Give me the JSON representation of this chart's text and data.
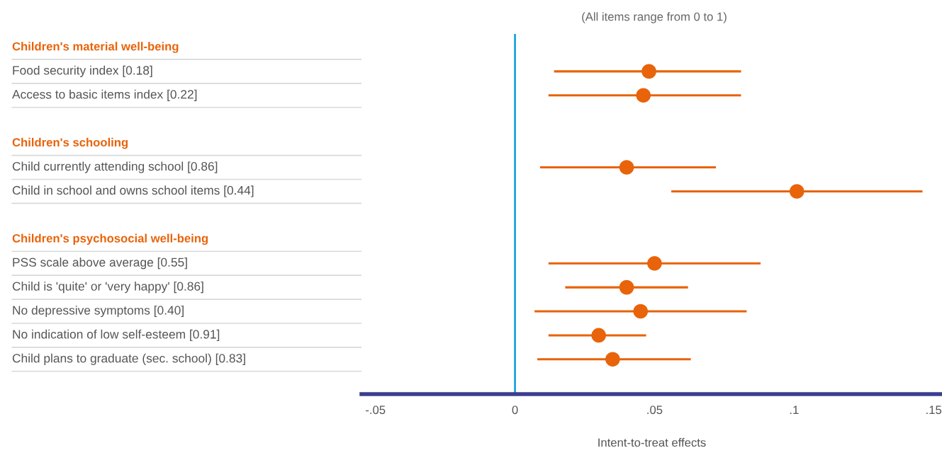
{
  "chart_data": {
    "type": "scatter",
    "orientation": "horizontal",
    "categories": [
      "Children's material well-being",
      "Food security index [0.18]",
      "Access to basic items index [0.22]",
      null,
      "Children's schooling",
      "Child currently attending school [0.86]",
      "Child in school and owns school items [0.44]",
      null,
      "Children's psychosocial well-being",
      "PSS scale above average [0.55]",
      "Child is 'quite' or 'very happy' [0.86]",
      "No depressive symptoms [0.40]",
      "No indication of low self-esteem [0.91]",
      "Child plans to graduate (sec. school) [0.83]"
    ],
    "values": [
      null,
      0.048,
      0.046,
      null,
      null,
      0.04,
      0.101,
      null,
      null,
      0.05,
      0.04,
      0.045,
      0.03,
      0.035
    ],
    "errors": [
      null,
      [
        0.014,
        0.081
      ],
      [
        0.012,
        0.081
      ],
      null,
      null,
      [
        0.009,
        0.072
      ],
      [
        0.056,
        0.146
      ],
      null,
      null,
      [
        0.012,
        0.088
      ],
      [
        0.018,
        0.062
      ],
      [
        0.007,
        0.083
      ],
      [
        0.012,
        0.047
      ],
      [
        0.008,
        0.063
      ]
    ],
    "color": "#e8630a",
    "marker": "circle",
    "xlim": [
      -0.055,
      0.153
    ],
    "xticks": [
      {
        "value": -0.05,
        "label": "-.05"
      },
      0,
      {
        "value": 0.05,
        "label": ".05"
      },
      {
        "value": 0.1,
        "label": ".1"
      },
      {
        "value": 0.15,
        "label": ".15"
      }
    ],
    "xlabel": "Intent-to-treat effects",
    "annotations": [
      "(All items range from 0 to 1)"
    ],
    "ref_lines": [
      {
        "axis": "x",
        "value": 0,
        "color": "#1aa3e0"
      }
    ],
    "grid": "y",
    "legend": false
  }
}
